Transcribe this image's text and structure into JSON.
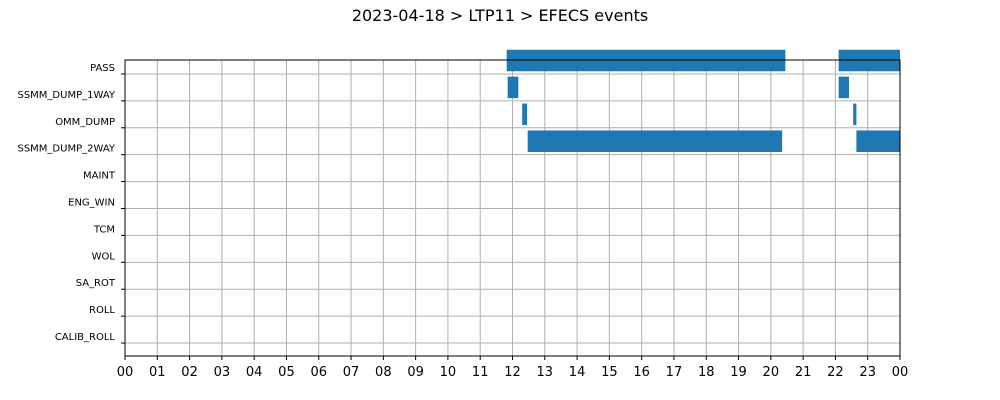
{
  "chart_data": {
    "type": "timeline",
    "title": "2023-04-18 > LTP11 > EFECS events",
    "xlabel": "",
    "ylabel": "",
    "x_unit": "hour",
    "xlim": [
      0,
      24
    ],
    "x_ticks": [
      0,
      1,
      2,
      3,
      4,
      5,
      6,
      7,
      8,
      9,
      10,
      11,
      12,
      13,
      14,
      15,
      16,
      17,
      18,
      19,
      20,
      21,
      22,
      23,
      24
    ],
    "x_tick_labels": [
      "00",
      "01",
      "02",
      "03",
      "04",
      "05",
      "06",
      "07",
      "08",
      "09",
      "10",
      "11",
      "12",
      "13",
      "14",
      "15",
      "16",
      "17",
      "18",
      "19",
      "20",
      "21",
      "22",
      "23",
      "00"
    ],
    "grid": true,
    "bar_color": "#1f77b4",
    "categories": [
      "PASS",
      "SSMM_DUMP_1WAY",
      "OMM_DUMP",
      "SSMM_DUMP_2WAY",
      "MAINT",
      "ENG_WIN",
      "TCM",
      "WOL",
      "SA_ROT",
      "ROLL",
      "CALIB_ROLL"
    ],
    "events": [
      {
        "category": "PASS",
        "start": 11.82,
        "end": 20.45
      },
      {
        "category": "PASS",
        "start": 22.1,
        "end": 24.0
      },
      {
        "category": "SSMM_DUMP_1WAY",
        "start": 11.85,
        "end": 12.18
      },
      {
        "category": "SSMM_DUMP_1WAY",
        "start": 22.1,
        "end": 22.42
      },
      {
        "category": "OMM_DUMP",
        "start": 12.3,
        "end": 12.45
      },
      {
        "category": "OMM_DUMP",
        "start": 22.55,
        "end": 22.65
      },
      {
        "category": "SSMM_DUMP_2WAY",
        "start": 12.47,
        "end": 20.35
      },
      {
        "category": "SSMM_DUMP_2WAY",
        "start": 22.65,
        "end": 24.0
      }
    ]
  }
}
